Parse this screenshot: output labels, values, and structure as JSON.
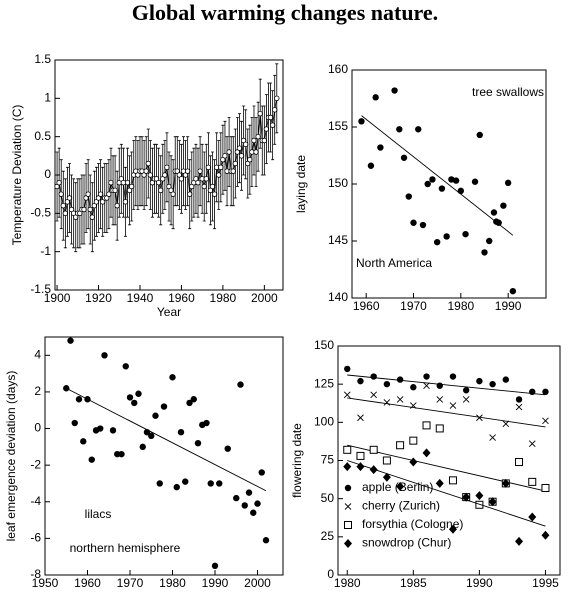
{
  "title": "Global warming changes nature.",
  "chart_data": [
    {
      "type": "errorbar",
      "xlabel": "Year",
      "ylabel": "Temperature Deviation (C)",
      "x": [
        1900,
        1901,
        1902,
        1903,
        1904,
        1905,
        1906,
        1907,
        1908,
        1909,
        1910,
        1911,
        1912,
        1913,
        1914,
        1915,
        1916,
        1917,
        1918,
        1919,
        1920,
        1921,
        1922,
        1923,
        1924,
        1925,
        1926,
        1927,
        1928,
        1929,
        1930,
        1931,
        1932,
        1933,
        1934,
        1935,
        1936,
        1937,
        1938,
        1939,
        1940,
        1941,
        1942,
        1943,
        1944,
        1945,
        1946,
        1947,
        1948,
        1949,
        1950,
        1951,
        1952,
        1953,
        1954,
        1955,
        1956,
        1957,
        1958,
        1959,
        1960,
        1961,
        1962,
        1963,
        1964,
        1965,
        1966,
        1967,
        1968,
        1969,
        1970,
        1971,
        1972,
        1973,
        1974,
        1975,
        1976,
        1977,
        1978,
        1979,
        1980,
        1981,
        1982,
        1983,
        1984,
        1985,
        1986,
        1987,
        1988,
        1989,
        1990,
        1991,
        1992,
        1993,
        1994,
        1995,
        1996,
        1997,
        1998,
        1999,
        2000,
        2001,
        2002,
        2003,
        2004,
        2005,
        2006
      ],
      "values": [
        -0.15,
        -0.1,
        -0.25,
        -0.4,
        -0.5,
        -0.35,
        -0.3,
        -0.45,
        -0.5,
        -0.55,
        -0.5,
        -0.5,
        -0.45,
        -0.45,
        -0.3,
        -0.25,
        -0.45,
        -0.55,
        -0.4,
        -0.35,
        -0.3,
        -0.25,
        -0.35,
        -0.3,
        -0.3,
        -0.25,
        -0.1,
        -0.2,
        -0.2,
        -0.4,
        -0.1,
        -0.05,
        -0.1,
        -0.35,
        -0.1,
        -0.2,
        -0.15,
        0.0,
        0.05,
        0.0,
        0.05,
        0.05,
        0.0,
        0.05,
        0.15,
        0.0,
        -0.1,
        -0.05,
        -0.05,
        -0.1,
        -0.2,
        -0.05,
        0.0,
        0.1,
        -0.15,
        -0.2,
        -0.25,
        0.05,
        0.05,
        0.0,
        -0.05,
        0.05,
        0.0,
        0.05,
        -0.25,
        -0.15,
        -0.1,
        -0.05,
        -0.1,
        0.05,
        -0.05,
        -0.15,
        -0.05,
        0.1,
        -0.2,
        -0.15,
        -0.25,
        0.1,
        0.0,
        0.1,
        0.2,
        0.25,
        0.05,
        0.3,
        0.05,
        0.05,
        0.15,
        0.3,
        0.35,
        0.25,
        0.45,
        0.4,
        0.15,
        0.2,
        0.3,
        0.45,
        0.3,
        0.5,
        0.8,
        0.45,
        0.45,
        0.6,
        0.75,
        0.75,
        0.65,
        0.85,
        1.0
      ],
      "error": 0.45,
      "xlim": [
        1899,
        2009
      ],
      "xticks": [
        1900,
        1920,
        1940,
        1960,
        1980,
        2000
      ],
      "ylim": [
        -1.5,
        1.5
      ],
      "yticks": [
        -1.5,
        -1,
        -0.5,
        0,
        0.5,
        1,
        1.5
      ]
    },
    {
      "type": "scatter",
      "ylabel": "laying date",
      "annotations": [
        "tree swallows",
        "North America"
      ],
      "x": [
        1959,
        1961,
        1962,
        1963,
        1966,
        1967,
        1968,
        1969,
        1970,
        1971,
        1972,
        1973,
        1974,
        1975,
        1976,
        1977,
        1978,
        1979,
        1980,
        1981,
        1983,
        1984,
        1985,
        1986,
        1987,
        1987.5,
        1988,
        1989,
        1990,
        1991
      ],
      "values": [
        155.5,
        151.6,
        157.6,
        153.2,
        158.2,
        154.8,
        152.3,
        148.9,
        146.6,
        154.8,
        146.4,
        150.0,
        150.4,
        144.9,
        149.6,
        145.4,
        150.4,
        150.3,
        149.4,
        145.6,
        150.2,
        154.3,
        144.0,
        145.0,
        147.5,
        146.7,
        146.6,
        148.1,
        150.1,
        140.6
      ],
      "trend": {
        "x": [
          1959,
          1991
        ],
        "y": [
          156.0,
          145.5
        ]
      },
      "xlim": [
        1957,
        1998
      ],
      "xticks": [
        1960,
        1970,
        1980,
        1990
      ],
      "ylim": [
        140,
        160
      ],
      "yticks": [
        140,
        145,
        150,
        155,
        160
      ]
    },
    {
      "type": "scatter",
      "ylabel": "leaf emergence deviation (days)",
      "annotations": [
        "lilacs",
        "northern hemisphere"
      ],
      "x": [
        1955,
        1956,
        1957,
        1958,
        1959,
        1960,
        1961,
        1962,
        1963,
        1964,
        1966,
        1967,
        1968,
        1969,
        1970,
        1971,
        1972,
        1973,
        1974,
        1975,
        1976,
        1977,
        1978,
        1980,
        1981,
        1982,
        1983,
        1984,
        1985,
        1986,
        1987,
        1988,
        1989,
        1990,
        1991,
        1993,
        1995,
        1996,
        1997,
        1998,
        1999,
        2000,
        2001,
        2002
      ],
      "values": [
        2.2,
        4.8,
        0.3,
        1.6,
        -0.7,
        1.6,
        -1.7,
        -0.1,
        0.0,
        4.0,
        -0.1,
        -1.4,
        -1.4,
        3.4,
        1.7,
        1.4,
        1.9,
        -1.0,
        -0.2,
        -0.4,
        0.7,
        -3.0,
        1.2,
        2.8,
        -3.2,
        -0.2,
        -2.9,
        1.4,
        1.6,
        -0.8,
        0.2,
        0.3,
        -3.0,
        -7.5,
        -3.0,
        -1.1,
        -3.8,
        2.4,
        -4.2,
        -3.5,
        -4.6,
        -4.1,
        -2.4,
        -6.1
      ],
      "trend": {
        "x": [
          1955,
          2002
        ],
        "y": [
          2.2,
          -3.4
        ]
      },
      "xlim": [
        1950,
        2006
      ],
      "xticks": [
        1950,
        1960,
        1970,
        1980,
        1990,
        2000
      ],
      "ylim": [
        -8,
        5
      ],
      "yticks": [
        -8,
        -6,
        -4,
        -2,
        0,
        2,
        4
      ]
    },
    {
      "type": "scatter",
      "ylabel": "flowering date",
      "x": [
        1980,
        1981,
        1982,
        1983,
        1984,
        1985,
        1986,
        1987,
        1988,
        1989,
        1990,
        1991,
        1992,
        1993,
        1994,
        1995
      ],
      "series": [
        {
          "name": "apple (Berlin)",
          "marker": "circle",
          "color": "#000000",
          "values": [
            135,
            127,
            130,
            125,
            128,
            123,
            130,
            124,
            130,
            121,
            127,
            125,
            128,
            115,
            120,
            120
          ],
          "trend": {
            "x": [
              1980,
              1995
            ],
            "y": [
              131,
              118
            ]
          }
        },
        {
          "name": "cherry (Zurich)",
          "marker": "x",
          "color": "#000000",
          "values": [
            118,
            103,
            118,
            113,
            115,
            111,
            124,
            115,
            111,
            115,
            103,
            90,
            99,
            110,
            86,
            101
          ],
          "trend": {
            "x": [
              1980,
              1995
            ],
            "y": [
              116,
              97
            ]
          }
        },
        {
          "name": "forsythia (Cologne)",
          "marker": "square",
          "color": "#000000",
          "values": [
            82,
            78,
            82,
            75,
            85,
            88,
            98,
            96,
            62,
            51,
            46,
            48,
            60,
            74,
            61,
            57
          ],
          "trend": {
            "x": [
              1980,
              1995
            ],
            "y": [
              85,
              55
            ]
          }
        },
        {
          "name": "snowdrop (Chur)",
          "marker": "diamond",
          "color": "#000000",
          "values": [
            71,
            71,
            69,
            64,
            58,
            74,
            80,
            60,
            30,
            51,
            52,
            48,
            60,
            22,
            38,
            26
          ],
          "trend": {
            "x": [
              1980,
              1995
            ],
            "y": [
              75,
              32
            ]
          }
        }
      ],
      "xlim": [
        1979.3,
        1996.1
      ],
      "xticks": [
        1980,
        1985,
        1990,
        1995
      ],
      "ylim": [
        0,
        150
      ],
      "yticks": [
        0,
        25,
        50,
        75,
        100,
        125,
        150
      ]
    }
  ]
}
